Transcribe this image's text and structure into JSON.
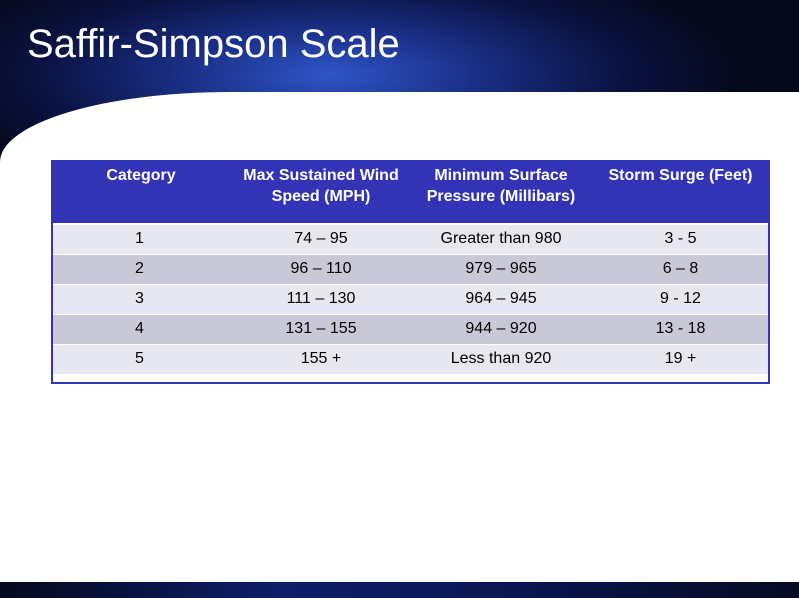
{
  "slide": {
    "title": "Saffir-Simpson Scale"
  },
  "table": {
    "headers": [
      "Category",
      "Max Sustained Wind Speed (MPH)",
      "Minimum Surface Pressure (Millibars)",
      "Storm Surge (Feet)"
    ],
    "rows": [
      {
        "category": "1",
        "wind": "74 – 95",
        "pressure": "Greater than 980",
        "surge": "3 - 5"
      },
      {
        "category": "2",
        "wind": "96 – 110",
        "pressure": "979 – 965",
        "surge": "6 – 8"
      },
      {
        "category": "3",
        "wind": "111 – 130",
        "pressure": "964 – 945",
        "surge": "9 - 12"
      },
      {
        "category": "4",
        "wind": "131 – 155",
        "pressure": "944 – 920",
        "surge": "13 - 18"
      },
      {
        "category": "5",
        "wind": "155 +",
        "pressure": "Less than 920",
        "surge": "19 +"
      }
    ]
  },
  "colors": {
    "header_background": "#3333b5",
    "row_light": "#e7e7f2",
    "row_dark": "#c8c8d6",
    "title_text": "#ffffff"
  }
}
